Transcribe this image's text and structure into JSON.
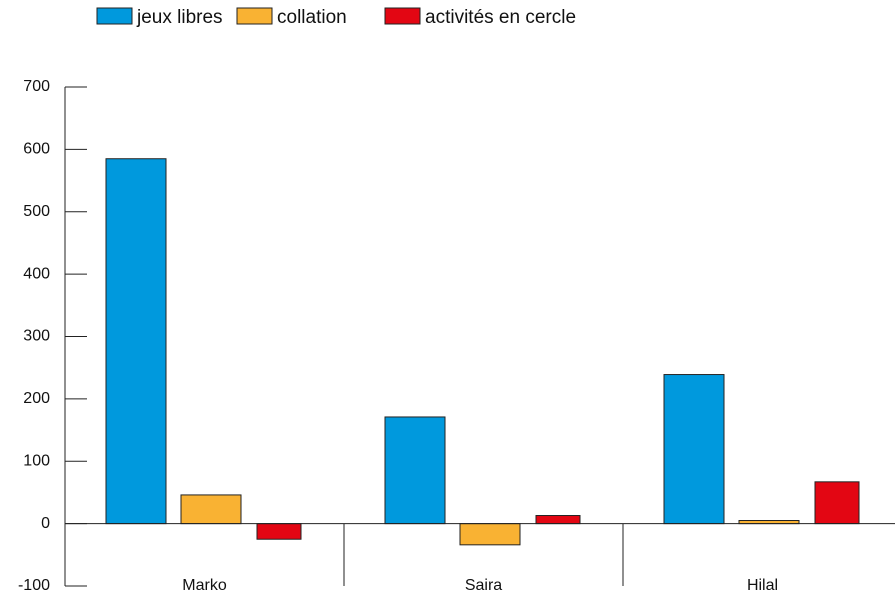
{
  "chart_data": {
    "type": "bar",
    "categories": [
      "Marko",
      "Saira",
      "Hilal"
    ],
    "series": [
      {
        "name": "jeux libres",
        "color": "#0099dd",
        "values": [
          585,
          171,
          239
        ]
      },
      {
        "name": "collation",
        "color": "#f9b233",
        "values": [
          46,
          -34,
          5
        ]
      },
      {
        "name": "activités en cercle",
        "color": "#e30613",
        "values": [
          -25,
          13,
          67
        ]
      }
    ],
    "ylim": [
      -100,
      700
    ],
    "yticks": [
      -100,
      0,
      100,
      200,
      300,
      400,
      500,
      600,
      700
    ],
    "legend": "top"
  }
}
